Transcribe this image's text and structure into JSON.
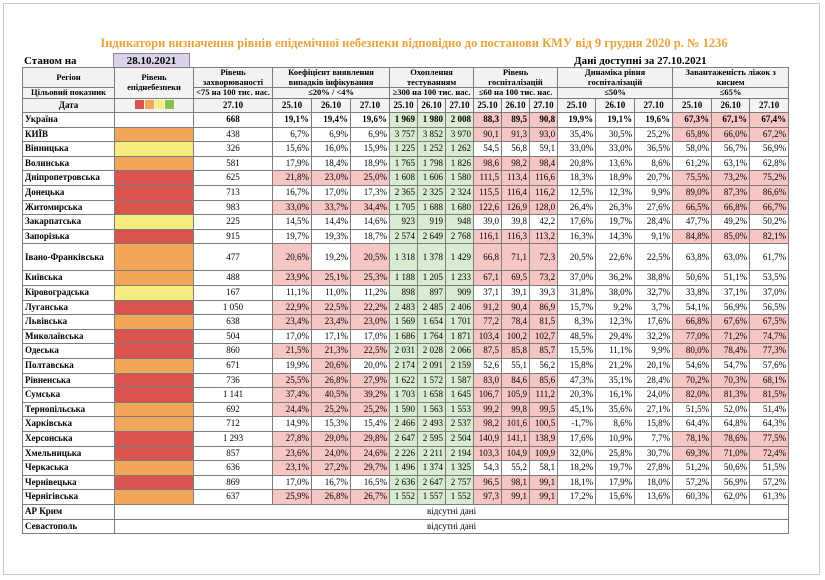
{
  "title": "Індикатори визначення рівнів епідемічної небезпеки відповідно до постанови КМУ від 9 грудня 2020 р. № 1236",
  "as_of_label": "Станом на",
  "as_of_date": "28.10.2021",
  "data_available": "Дані доступні за 27.10.2021",
  "colors": {
    "red": "#d9534f",
    "orange": "#f2a65a",
    "yellow": "#f7ec7e",
    "green": "#8bc34a"
  },
  "header": {
    "region": "Регіон",
    "target": "Цільовий показник",
    "date": "Дата",
    "level": "Рівень епіднебезпеки",
    "incidence": "Рівень захворюваності",
    "incidence_target": "<75 на 100 тис. нас.",
    "detection": "Коефіцієнт виявлення випадків інфікування",
    "detection_target": "≤20% / <4%",
    "testing": "Охоплення тестуванням",
    "testing_target": "≥300 на 100 тис. нас.",
    "hosp": "Рівень госпіталізацій",
    "hosp_target": "≤60 на 100 тис. нас.",
    "hosp_dyn": "Динаміка рівня госпіталізацій",
    "hosp_dyn_target": "≤50%",
    "oxygen": "Завантаженість ліжок з киснем",
    "oxygen_target": "≤65%",
    "date_single": "27.10",
    "dates": [
      "25.10",
      "26.10",
      "27.10"
    ]
  },
  "ukraine": {
    "name": "Україна",
    "incidence": "668",
    "detection": [
      "19,1%",
      "19,4%",
      "19,6%"
    ],
    "testing": [
      "1 969",
      "1 980",
      "2 008"
    ],
    "hosp": [
      "88,3",
      "89,5",
      "90,8"
    ],
    "dyn": [
      "19,9%",
      "19,1%",
      "19,6%"
    ],
    "oxy": [
      "67,3%",
      "67,1%",
      "67,4%"
    ]
  },
  "rows": [
    {
      "name": "КИЇВ",
      "lvl": "ora",
      "inc": "438",
      "det": [
        "6,7%",
        "6,9%",
        "6,9%"
      ],
      "tst": [
        "3 757",
        "3 852",
        "3 970"
      ],
      "hsp": [
        "90,1",
        "91,3",
        "93,0"
      ],
      "dyn": [
        "35,4%",
        "30,5%",
        "25,2%"
      ],
      "oxy": [
        "65,8%",
        "66,0%",
        "67,2%"
      ]
    },
    {
      "name": "Вінницька",
      "lvl": "yel",
      "inc": "326",
      "det": [
        "15,6%",
        "16,0%",
        "15,9%"
      ],
      "tst": [
        "1 225",
        "1 252",
        "1 262"
      ],
      "hsp": [
        "54,5",
        "56,8",
        "59,1"
      ],
      "dyn": [
        "33,0%",
        "33,0%",
        "36,5%"
      ],
      "oxy": [
        "58,0%",
        "56,7%",
        "56,9%"
      ]
    },
    {
      "name": "Волинська",
      "lvl": "ora",
      "inc": "581",
      "det": [
        "17,9%",
        "18,4%",
        "18,9%"
      ],
      "tst": [
        "1 765",
        "1 798",
        "1 826"
      ],
      "hsp": [
        "98,6",
        "98,2",
        "98,4"
      ],
      "dyn": [
        "20,8%",
        "13,6%",
        "8,6%"
      ],
      "oxy": [
        "61,2%",
        "63,1%",
        "62,8%"
      ]
    },
    {
      "name": "Дніпропетровська",
      "lvl": "red",
      "inc": "625",
      "det": [
        "21,8%",
        "23,0%",
        "25,0%"
      ],
      "tst": [
        "1 608",
        "1 606",
        "1 580"
      ],
      "hsp": [
        "111,5",
        "113,4",
        "116,6"
      ],
      "dyn": [
        "18,3%",
        "18,9%",
        "20,7%"
      ],
      "oxy": [
        "75,5%",
        "73,2%",
        "75,2%"
      ]
    },
    {
      "name": "Донецька",
      "lvl": "red",
      "inc": "713",
      "det": [
        "16,7%",
        "17,0%",
        "17,3%"
      ],
      "tst": [
        "2 365",
        "2 325",
        "2 324"
      ],
      "hsp": [
        "115,5",
        "116,4",
        "116,2"
      ],
      "dyn": [
        "12,5%",
        "12,3%",
        "9,9%"
      ],
      "oxy": [
        "89,0%",
        "87,3%",
        "86,6%"
      ]
    },
    {
      "name": "Житомирська",
      "lvl": "red",
      "inc": "983",
      "det": [
        "33,0%",
        "33,7%",
        "34,4%"
      ],
      "tst": [
        "1 705",
        "1 688",
        "1 680"
      ],
      "hsp": [
        "122,6",
        "126,9",
        "128,0"
      ],
      "dyn": [
        "26,4%",
        "26,3%",
        "27,6%"
      ],
      "oxy": [
        "66,5%",
        "66,8%",
        "66,7%"
      ]
    },
    {
      "name": "Закарпатська",
      "lvl": "yel",
      "inc": "225",
      "det": [
        "14,5%",
        "14,4%",
        "14,6%"
      ],
      "tst": [
        "923",
        "919",
        "948"
      ],
      "hsp": [
        "39,0",
        "39,8",
        "42,2"
      ],
      "dyn": [
        "17,6%",
        "19,7%",
        "28,4%"
      ],
      "oxy": [
        "47,7%",
        "49,2%",
        "50,2%"
      ]
    },
    {
      "name": "Запорізька",
      "lvl": "red",
      "inc": "915",
      "det": [
        "19,7%",
        "19,3%",
        "18,7%"
      ],
      "tst": [
        "2 574",
        "2 649",
        "2 768"
      ],
      "hsp": [
        "116,1",
        "116,3",
        "113,2"
      ],
      "dyn": [
        "16,3%",
        "14,3%",
        "9,1%"
      ],
      "oxy": [
        "84,8%",
        "85,0%",
        "82,1%"
      ]
    },
    {
      "name": "Івано-Франківська",
      "lvl": "ora",
      "inc": "477",
      "det": [
        "20,6%",
        "19,2%",
        "20,5%"
      ],
      "tst": [
        "1 318",
        "1 378",
        "1 429"
      ],
      "hsp": [
        "66,8",
        "71,1",
        "72,3"
      ],
      "dyn": [
        "20,5%",
        "22,6%",
        "22,5%"
      ],
      "oxy": [
        "63,8%",
        "63,0%",
        "61,7%"
      ],
      "two": true
    },
    {
      "name": "Київська",
      "lvl": "ora",
      "inc": "488",
      "det": [
        "23,9%",
        "25,1%",
        "25,3%"
      ],
      "tst": [
        "1 188",
        "1 205",
        "1 233"
      ],
      "hsp": [
        "67,1",
        "69,5",
        "73,2"
      ],
      "dyn": [
        "37,0%",
        "36,2%",
        "38,8%"
      ],
      "oxy": [
        "50,6%",
        "51,1%",
        "53,5%"
      ]
    },
    {
      "name": "Кіровоградська",
      "lvl": "yel",
      "inc": "167",
      "det": [
        "11,1%",
        "11,0%",
        "11,2%"
      ],
      "tst": [
        "898",
        "897",
        "909"
      ],
      "hsp": [
        "37,1",
        "39,1",
        "39,3"
      ],
      "dyn": [
        "31,8%",
        "38,0%",
        "32,7%"
      ],
      "oxy": [
        "33,8%",
        "37,1%",
        "37,0%"
      ]
    },
    {
      "name": "Луганська",
      "lvl": "red",
      "inc": "1 050",
      "det": [
        "22,9%",
        "22,5%",
        "22,2%"
      ],
      "tst": [
        "2 483",
        "2 485",
        "2 406"
      ],
      "hsp": [
        "91,2",
        "90,4",
        "86,9"
      ],
      "dyn": [
        "15,7%",
        "9,2%",
        "3,7%"
      ],
      "oxy": [
        "54,1%",
        "56,9%",
        "56,5%"
      ]
    },
    {
      "name": "Львівська",
      "lvl": "ora",
      "inc": "638",
      "det": [
        "23,4%",
        "23,4%",
        "23,0%"
      ],
      "tst": [
        "1 569",
        "1 654",
        "1 701"
      ],
      "hsp": [
        "77,2",
        "78,4",
        "81,5"
      ],
      "dyn": [
        "8,3%",
        "12,3%",
        "17,6%"
      ],
      "oxy": [
        "66,8%",
        "67,6%",
        "67,5%"
      ]
    },
    {
      "name": "Миколаївська",
      "lvl": "red",
      "inc": "504",
      "det": [
        "17,0%",
        "17,1%",
        "17,0%"
      ],
      "tst": [
        "1 686",
        "1 764",
        "1 871"
      ],
      "hsp": [
        "103,4",
        "100,2",
        "102,7"
      ],
      "dyn": [
        "48,5%",
        "29,4%",
        "32,2%"
      ],
      "oxy": [
        "77,0%",
        "71,2%",
        "74,7%"
      ]
    },
    {
      "name": "Одеська",
      "lvl": "red",
      "inc": "860",
      "det": [
        "21,5%",
        "21,3%",
        "22,5%"
      ],
      "tst": [
        "2 031",
        "2 028",
        "2 066"
      ],
      "hsp": [
        "87,5",
        "85,8",
        "85,7"
      ],
      "dyn": [
        "15,5%",
        "11,1%",
        "9,9%"
      ],
      "oxy": [
        "80,0%",
        "78,4%",
        "77,3%"
      ]
    },
    {
      "name": "Полтавська",
      "lvl": "ora",
      "inc": "671",
      "det": [
        "19,9%",
        "20,6%",
        "20,0%"
      ],
      "tst": [
        "2 174",
        "2 091",
        "2 159"
      ],
      "hsp": [
        "52,6",
        "55,1",
        "56,2"
      ],
      "dyn": [
        "15,8%",
        "21,2%",
        "20,1%"
      ],
      "oxy": [
        "54,6%",
        "54,7%",
        "57,6%"
      ]
    },
    {
      "name": "Рівненська",
      "lvl": "red",
      "inc": "736",
      "det": [
        "25,5%",
        "26,8%",
        "27,9%"
      ],
      "tst": [
        "1 622",
        "1 572",
        "1 587"
      ],
      "hsp": [
        "83,0",
        "84,6",
        "85,6"
      ],
      "dyn": [
        "47,3%",
        "35,1%",
        "28,4%"
      ],
      "oxy": [
        "70,2%",
        "70,3%",
        "68,1%"
      ]
    },
    {
      "name": "Сумська",
      "lvl": "red",
      "inc": "1 141",
      "det": [
        "37,4%",
        "40,5%",
        "39,2%"
      ],
      "tst": [
        "1 703",
        "1 658",
        "1 645"
      ],
      "hsp": [
        "106,7",
        "105,9",
        "111,2"
      ],
      "dyn": [
        "20,3%",
        "16,1%",
        "24,0%"
      ],
      "oxy": [
        "82,0%",
        "81,3%",
        "81,5%"
      ]
    },
    {
      "name": "Тернопільська",
      "lvl": "ora",
      "inc": "692",
      "det": [
        "24,4%",
        "25,2%",
        "25,2%"
      ],
      "tst": [
        "1 590",
        "1 563",
        "1 553"
      ],
      "hsp": [
        "99,2",
        "99,8",
        "99,5"
      ],
      "dyn": [
        "45,1%",
        "35,6%",
        "27,1%"
      ],
      "oxy": [
        "51,5%",
        "52,0%",
        "51,4%"
      ]
    },
    {
      "name": "Харківська",
      "lvl": "ora",
      "inc": "712",
      "det": [
        "14,9%",
        "15,3%",
        "15,4%"
      ],
      "tst": [
        "2 466",
        "2 493",
        "2 537"
      ],
      "hsp": [
        "98,2",
        "101,6",
        "100,5"
      ],
      "dyn": [
        "-1,7%",
        "8,6%",
        "15,8%"
      ],
      "oxy": [
        "64,4%",
        "64,8%",
        "64,3%"
      ]
    },
    {
      "name": "Херсонська",
      "lvl": "red",
      "inc": "1 293",
      "det": [
        "27,8%",
        "29,0%",
        "29,8%"
      ],
      "tst": [
        "2 647",
        "2 595",
        "2 504"
      ],
      "hsp": [
        "140,9",
        "141,1",
        "138,9"
      ],
      "dyn": [
        "17,6%",
        "10,9%",
        "7,7%"
      ],
      "oxy": [
        "78,1%",
        "78,6%",
        "77,5%"
      ]
    },
    {
      "name": "Хмельницька",
      "lvl": "red",
      "inc": "857",
      "det": [
        "23,6%",
        "24,0%",
        "24,6%"
      ],
      "tst": [
        "2 226",
        "2 211",
        "2 194"
      ],
      "hsp": [
        "103,3",
        "104,9",
        "109,9"
      ],
      "dyn": [
        "32,0%",
        "25,8%",
        "30,7%"
      ],
      "oxy": [
        "69,3%",
        "71,0%",
        "72,4%"
      ]
    },
    {
      "name": "Черкаська",
      "lvl": "ora",
      "inc": "636",
      "det": [
        "23,1%",
        "27,2%",
        "29,7%"
      ],
      "tst": [
        "1 496",
        "1 374",
        "1 325"
      ],
      "hsp": [
        "54,3",
        "55,2",
        "58,1"
      ],
      "dyn": [
        "18,2%",
        "19,7%",
        "27,8%"
      ],
      "oxy": [
        "51,2%",
        "50,6%",
        "51,5%"
      ]
    },
    {
      "name": "Чернівецька",
      "lvl": "red",
      "inc": "869",
      "det": [
        "17,0%",
        "16,7%",
        "16,5%"
      ],
      "tst": [
        "2 636",
        "2 647",
        "2 757"
      ],
      "hsp": [
        "96,5",
        "98,1",
        "99,1"
      ],
      "dyn": [
        "18,1%",
        "17,9%",
        "18,0%"
      ],
      "oxy": [
        "57,2%",
        "56,9%",
        "57,2%"
      ]
    },
    {
      "name": "Чернігівська",
      "lvl": "ora",
      "inc": "637",
      "det": [
        "25,9%",
        "26,8%",
        "26,7%"
      ],
      "tst": [
        "1 552",
        "1 557",
        "1 552"
      ],
      "hsp": [
        "97,3",
        "99,1",
        "99,1"
      ],
      "dyn": [
        "17,2%",
        "15,6%",
        "13,6%"
      ],
      "oxy": [
        "60,3%",
        "62,0%",
        "61,3%"
      ]
    }
  ],
  "missing": [
    {
      "name": "АР Крим",
      "note": "відсутні дані"
    },
    {
      "name": "Севастополь",
      "note": "відсутні дані"
    }
  ]
}
